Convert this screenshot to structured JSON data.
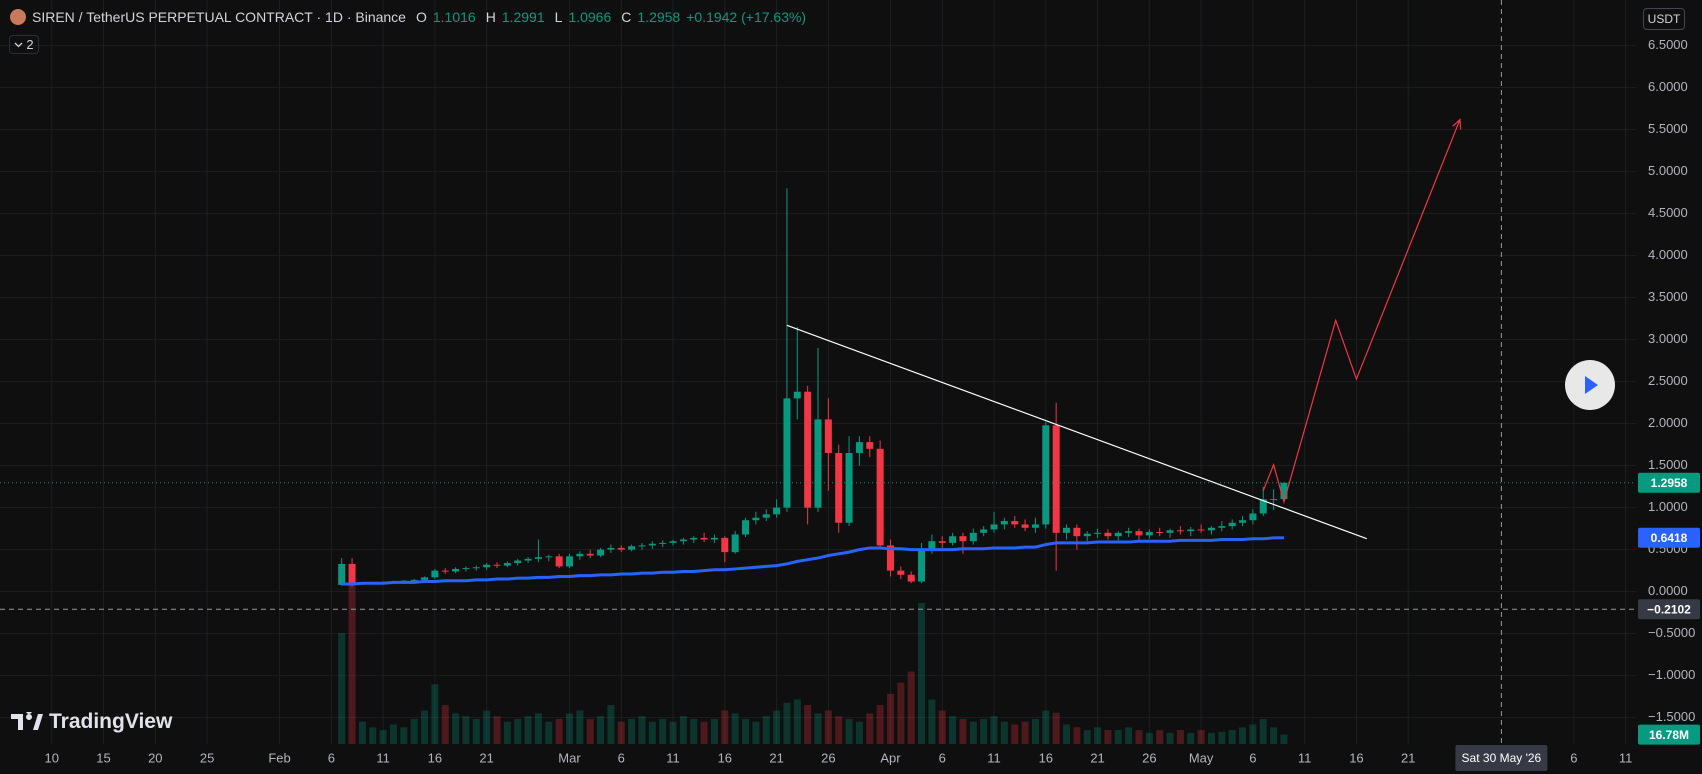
{
  "header": {
    "symbol_title": "SIREN / TetherUS PERPETUAL CONTRACT · 1D · Binance",
    "ohlc_labels": [
      "O",
      "H",
      "L",
      "C"
    ],
    "change": "+0.1942 (+17.63%)",
    "indicator_count": "2"
  },
  "currency_button": "USDT",
  "logo": "TradingView",
  "chart_data": {
    "type": "candlestick",
    "up_color": "#089981",
    "down_color": "#f23645",
    "x": [
      "2026-02-07",
      "2026-02-08",
      "2026-02-09",
      "2026-02-10",
      "2026-02-11",
      "2026-02-12",
      "2026-02-13",
      "2026-02-14",
      "2026-02-15",
      "2026-02-16",
      "2026-02-17",
      "2026-02-18",
      "2026-02-19",
      "2026-02-20",
      "2026-02-21",
      "2026-02-22",
      "2026-02-23",
      "2026-02-24",
      "2026-02-25",
      "2026-02-26",
      "2026-02-27",
      "2026-02-28",
      "2026-03-01",
      "2026-03-02",
      "2026-03-03",
      "2026-03-04",
      "2026-03-05",
      "2026-03-06",
      "2026-03-07",
      "2026-03-08",
      "2026-03-09",
      "2026-03-10",
      "2026-03-11",
      "2026-03-12",
      "2026-03-13",
      "2026-03-14",
      "2026-03-15",
      "2026-03-16",
      "2026-03-17",
      "2026-03-18",
      "2026-03-19",
      "2026-03-20",
      "2026-03-21",
      "2026-03-22",
      "2026-03-23",
      "2026-03-24",
      "2026-03-25",
      "2026-03-26",
      "2026-03-27",
      "2026-03-28",
      "2026-03-29",
      "2026-03-30",
      "2026-03-31",
      "2026-04-01",
      "2026-04-02",
      "2026-04-03",
      "2026-04-04",
      "2026-04-05",
      "2026-04-06",
      "2026-04-07",
      "2026-04-08",
      "2026-04-09",
      "2026-04-10",
      "2026-04-11",
      "2026-04-12",
      "2026-04-13",
      "2026-04-14",
      "2026-04-15",
      "2026-04-16",
      "2026-04-17",
      "2026-04-18",
      "2026-04-19",
      "2026-04-20",
      "2026-04-21",
      "2026-04-22",
      "2026-04-23",
      "2026-04-24",
      "2026-04-25",
      "2026-04-26",
      "2026-04-27",
      "2026-04-28",
      "2026-04-29",
      "2026-04-30",
      "2026-05-01",
      "2026-05-02",
      "2026-05-03",
      "2026-05-04",
      "2026-05-05",
      "2026-05-06",
      "2026-05-07",
      "2026-05-08",
      "2026-05-09"
    ],
    "open": [
      0.08,
      0.33,
      0.09,
      0.1,
      0.1,
      0.11,
      0.12,
      0.13,
      0.14,
      0.17,
      0.25,
      0.24,
      0.27,
      0.28,
      0.29,
      0.32,
      0.31,
      0.34,
      0.37,
      0.39,
      0.41,
      0.42,
      0.3,
      0.42,
      0.45,
      0.43,
      0.5,
      0.52,
      0.5,
      0.54,
      0.55,
      0.57,
      0.58,
      0.6,
      0.62,
      0.64,
      0.62,
      0.64,
      0.47,
      0.68,
      0.85,
      0.88,
      0.92,
      1.0,
      2.3,
      2.38,
      1.0,
      2.05,
      1.65,
      0.82,
      1.65,
      1.78,
      1.7,
      0.55,
      0.25,
      0.2,
      0.12,
      0.5,
      0.6,
      0.58,
      0.66,
      0.6,
      0.7,
      0.74,
      0.8,
      0.84,
      0.8,
      0.76,
      0.8,
      1.98,
      0.7,
      0.76,
      0.66,
      0.69,
      0.7,
      0.66,
      0.7,
      0.72,
      0.67,
      0.71,
      0.7,
      0.73,
      0.72,
      0.74,
      0.73,
      0.76,
      0.78,
      0.82,
      0.85,
      0.93,
      1.1,
      1.1016
    ],
    "high": [
      0.4,
      0.4,
      0.11,
      0.11,
      0.12,
      0.13,
      0.14,
      0.15,
      0.18,
      0.27,
      0.28,
      0.29,
      0.3,
      0.31,
      0.34,
      0.35,
      0.36,
      0.39,
      0.41,
      0.62,
      0.44,
      0.45,
      0.45,
      0.48,
      0.5,
      0.52,
      0.56,
      0.55,
      0.56,
      0.58,
      0.6,
      0.61,
      0.62,
      0.64,
      0.66,
      0.7,
      0.68,
      0.66,
      0.72,
      0.88,
      0.95,
      0.98,
      1.1,
      4.8,
      3.15,
      2.45,
      2.9,
      2.3,
      1.75,
      1.85,
      1.85,
      1.85,
      1.8,
      0.62,
      0.3,
      0.24,
      0.58,
      0.68,
      0.66,
      0.7,
      0.7,
      0.75,
      0.78,
      0.95,
      0.88,
      0.9,
      0.86,
      0.88,
      2.02,
      2.25,
      0.8,
      0.8,
      0.72,
      0.75,
      0.74,
      0.72,
      0.76,
      0.75,
      0.74,
      0.76,
      0.75,
      0.78,
      0.77,
      0.8,
      0.78,
      0.84,
      0.86,
      0.9,
      0.98,
      1.25,
      1.22,
      1.2991
    ],
    "low": [
      0.07,
      0.06,
      0.08,
      0.09,
      0.09,
      0.1,
      0.1,
      0.11,
      0.12,
      0.15,
      0.21,
      0.22,
      0.24,
      0.25,
      0.26,
      0.28,
      0.29,
      0.31,
      0.34,
      0.35,
      0.36,
      0.28,
      0.28,
      0.38,
      0.4,
      0.41,
      0.46,
      0.47,
      0.48,
      0.5,
      0.51,
      0.53,
      0.55,
      0.56,
      0.58,
      0.59,
      0.58,
      0.35,
      0.45,
      0.65,
      0.8,
      0.84,
      0.88,
      0.95,
      2.05,
      0.8,
      0.95,
      1.2,
      0.7,
      0.78,
      1.5,
      1.6,
      0.5,
      0.18,
      0.15,
      0.1,
      0.1,
      0.45,
      0.52,
      0.55,
      0.45,
      0.56,
      0.66,
      0.7,
      0.74,
      0.76,
      0.72,
      0.7,
      0.75,
      0.25,
      0.62,
      0.5,
      0.6,
      0.64,
      0.62,
      0.61,
      0.65,
      0.6,
      0.63,
      0.66,
      0.64,
      0.68,
      0.66,
      0.7,
      0.68,
      0.72,
      0.74,
      0.78,
      0.8,
      0.9,
      0.97,
      1.0966
    ],
    "close": [
      0.33,
      0.09,
      0.1,
      0.1,
      0.11,
      0.12,
      0.13,
      0.14,
      0.17,
      0.25,
      0.24,
      0.27,
      0.28,
      0.29,
      0.32,
      0.31,
      0.34,
      0.37,
      0.39,
      0.41,
      0.42,
      0.3,
      0.42,
      0.45,
      0.43,
      0.5,
      0.52,
      0.5,
      0.54,
      0.55,
      0.57,
      0.58,
      0.6,
      0.62,
      0.64,
      0.62,
      0.64,
      0.47,
      0.68,
      0.85,
      0.88,
      0.92,
      1.0,
      2.3,
      2.38,
      1.0,
      2.05,
      1.65,
      0.82,
      1.65,
      1.78,
      1.7,
      0.55,
      0.25,
      0.2,
      0.12,
      0.5,
      0.6,
      0.58,
      0.66,
      0.6,
      0.7,
      0.74,
      0.8,
      0.84,
      0.8,
      0.76,
      0.8,
      1.98,
      0.7,
      0.76,
      0.66,
      0.69,
      0.7,
      0.66,
      0.7,
      0.72,
      0.67,
      0.71,
      0.7,
      0.73,
      0.72,
      0.74,
      0.73,
      0.76,
      0.78,
      0.82,
      0.85,
      0.93,
      1.1,
      1.1016,
      1.2958
    ],
    "ma": {
      "color": "#2962ff",
      "values": [
        0.09,
        0.09,
        0.1,
        0.1,
        0.1,
        0.11,
        0.11,
        0.11,
        0.12,
        0.12,
        0.13,
        0.13,
        0.13,
        0.14,
        0.14,
        0.15,
        0.15,
        0.16,
        0.16,
        0.17,
        0.17,
        0.18,
        0.18,
        0.19,
        0.19,
        0.2,
        0.2,
        0.21,
        0.21,
        0.22,
        0.22,
        0.23,
        0.23,
        0.24,
        0.24,
        0.25,
        0.26,
        0.26,
        0.27,
        0.28,
        0.29,
        0.3,
        0.31,
        0.33,
        0.36,
        0.38,
        0.4,
        0.43,
        0.45,
        0.47,
        0.5,
        0.52,
        0.52,
        0.51,
        0.51,
        0.5,
        0.5,
        0.5,
        0.5,
        0.5,
        0.51,
        0.51,
        0.51,
        0.52,
        0.52,
        0.52,
        0.53,
        0.53,
        0.56,
        0.58,
        0.58,
        0.58,
        0.58,
        0.59,
        0.59,
        0.59,
        0.59,
        0.6,
        0.6,
        0.6,
        0.6,
        0.61,
        0.61,
        0.61,
        0.61,
        0.62,
        0.62,
        0.62,
        0.63,
        0.63,
        0.64,
        0.6418
      ]
    },
    "volume": {
      "ylim": [
        0,
        1335
      ],
      "values": [
        199,
        300,
        40,
        30,
        25,
        35,
        30,
        45,
        60,
        107,
        70,
        55,
        50,
        45,
        60,
        50,
        40,
        45,
        50,
        55,
        40,
        45,
        55,
        60,
        45,
        50,
        70,
        40,
        45,
        50,
        40,
        45,
        40,
        50,
        45,
        40,
        45,
        60,
        55,
        45,
        40,
        50,
        60,
        74,
        80,
        70,
        55,
        60,
        50,
        45,
        40,
        55,
        70,
        90,
        110,
        130,
        253,
        80,
        60,
        50,
        45,
        40,
        45,
        50,
        40,
        35,
        40,
        45,
        60,
        56,
        35,
        30,
        25,
        30,
        25,
        25,
        30,
        25,
        20,
        25,
        20,
        25,
        20,
        25,
        20,
        22,
        25,
        30,
        35,
        45,
        30,
        16.78
      ],
      "value_labels": [
        null,
        null,
        null,
        null,
        null,
        null,
        null,
        null,
        null,
        null,
        null,
        null,
        null,
        null,
        null,
        null,
        null,
        null,
        null,
        null,
        null,
        null,
        null,
        null,
        null,
        null,
        null,
        null,
        null,
        null,
        null,
        null,
        null,
        null,
        null,
        null,
        null,
        null,
        null,
        null,
        null,
        null,
        null,
        null,
        null,
        null,
        null,
        null,
        null,
        null,
        null,
        null,
        null,
        null,
        null,
        null,
        null,
        null,
        null,
        null,
        null,
        null,
        null,
        null,
        null,
        null,
        null,
        null,
        null,
        null,
        null,
        null,
        null,
        null,
        null,
        null,
        null,
        null,
        null,
        null,
        null,
        null,
        null,
        null,
        null,
        null,
        null,
        null,
        null,
        null,
        null,
        "16.78M"
      ]
    },
    "trendline": {
      "color": "#ffffff",
      "x": [
        "2026-03-22",
        "2026-05-17"
      ],
      "y": [
        3.17,
        0.63
      ]
    },
    "projection": {
      "color": "#f23645",
      "x": [
        "2026-05-07",
        "2026-05-08",
        "2026-05-09",
        "2026-05-14",
        "2026-05-16",
        "2026-05-26"
      ],
      "y": [
        1.2,
        1.51,
        1.07,
        3.23,
        2.53,
        5.62
      ]
    },
    "crosshair": {
      "x": {
        "value": "2026-05-30",
        "label": "Sat 30 May '26"
      },
      "y": {
        "value": -0.2102,
        "label": "−0.2102"
      }
    },
    "grid": true,
    "xlim": [
      "2026-01-05",
      "2026-06-12"
    ],
    "ylim": [
      -1.814,
      7.043
    ],
    "yticks": [
      {
        "value": 6.5,
        "label": "6.5000"
      },
      {
        "value": 6,
        "label": "6.0000"
      },
      {
        "value": 5.5,
        "label": "5.5000"
      },
      {
        "value": 5,
        "label": "5.0000"
      },
      {
        "value": 4.5,
        "label": "4.5000"
      },
      {
        "value": 4,
        "label": "4.0000"
      },
      {
        "value": 3.5,
        "label": "3.5000"
      },
      {
        "value": 3,
        "label": "3.0000"
      },
      {
        "value": 2.5,
        "label": "2.5000"
      },
      {
        "value": 2,
        "label": "2.0000"
      },
      {
        "value": 1.5,
        "label": "1.5000"
      },
      {
        "value": 1,
        "label": "1.0000"
      },
      {
        "value": 0.5,
        "label": "0.5000"
      },
      {
        "value": 0,
        "label": "0.0000"
      },
      {
        "value": -0.5,
        "label": "−0.5000"
      },
      {
        "value": -1,
        "label": "−1.0000"
      },
      {
        "value": -1.5,
        "label": "−1.5000"
      }
    ],
    "xticks": [
      {
        "value": "2026-01-10",
        "label": "10"
      },
      {
        "value": "2026-01-15",
        "label": "15"
      },
      {
        "value": "2026-01-20",
        "label": "20"
      },
      {
        "value": "2026-01-25",
        "label": "25"
      },
      {
        "value": "2026-02-01",
        "label": "Feb"
      },
      {
        "value": "2026-02-06",
        "label": "6"
      },
      {
        "value": "2026-02-11",
        "label": "11"
      },
      {
        "value": "2026-02-16",
        "label": "16"
      },
      {
        "value": "2026-02-21",
        "label": "21"
      },
      {
        "value": "2026-03-01",
        "label": "Mar"
      },
      {
        "value": "2026-03-06",
        "label": "6"
      },
      {
        "value": "2026-03-11",
        "label": "11"
      },
      {
        "value": "2026-03-16",
        "label": "16"
      },
      {
        "value": "2026-03-21",
        "label": "21"
      },
      {
        "value": "2026-03-26",
        "label": "26"
      },
      {
        "value": "2026-04-01",
        "label": "Apr"
      },
      {
        "value": "2026-04-06",
        "label": "6"
      },
      {
        "value": "2026-04-11",
        "label": "11"
      },
      {
        "value": "2026-04-16",
        "label": "16"
      },
      {
        "value": "2026-04-21",
        "label": "21"
      },
      {
        "value": "2026-04-26",
        "label": "26"
      },
      {
        "value": "2026-05-01",
        "label": "May"
      },
      {
        "value": "2026-05-06",
        "label": "6"
      },
      {
        "value": "2026-05-11",
        "label": "11"
      },
      {
        "value": "2026-05-16",
        "label": "16"
      },
      {
        "value": "2026-05-21",
        "label": "21"
      },
      {
        "value": "2026-06-06",
        "label": "6"
      },
      {
        "value": "2026-06-11",
        "label": "11"
      }
    ]
  }
}
